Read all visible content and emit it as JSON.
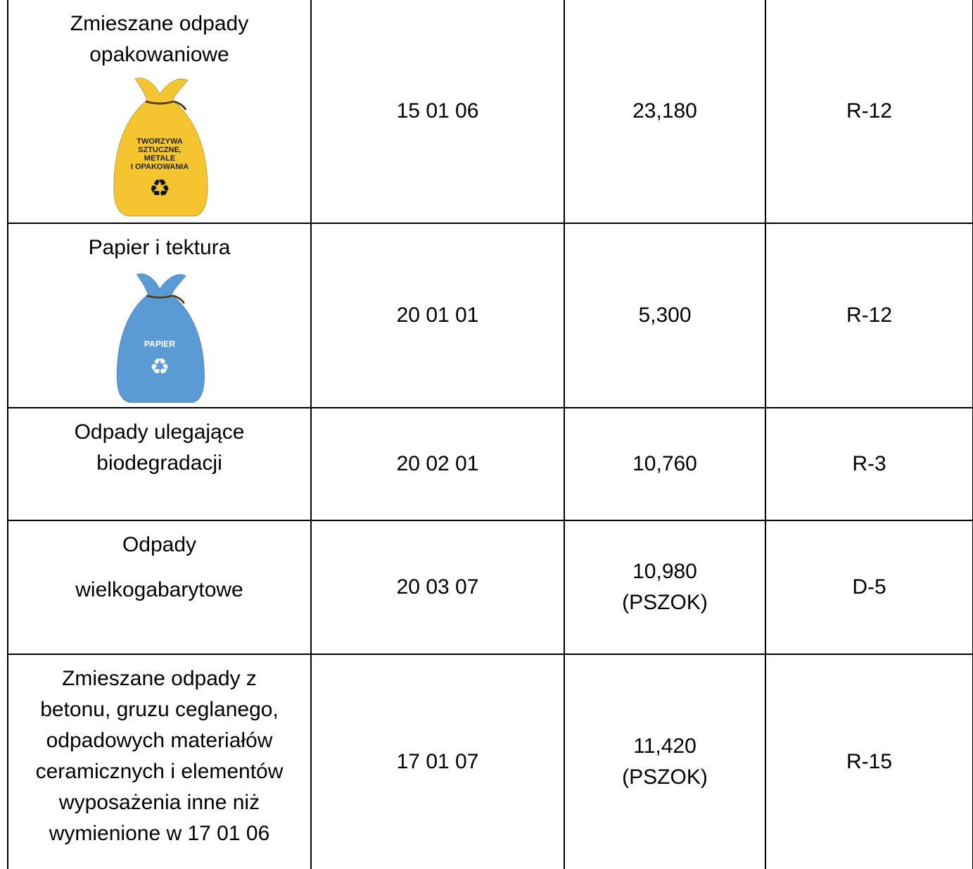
{
  "table": {
    "rows": [
      {
        "name": [
          "Zmieszane odpady",
          "opakowaniowe"
        ],
        "bag": {
          "color": "#f5c530",
          "label": [
            "TWORZYWA",
            "SZTUCZNE,",
            "METALE",
            "I OPAKOWANIA"
          ]
        },
        "code": "15 01 06",
        "mass": [
          "23,180"
        ],
        "method": "R-12"
      },
      {
        "name": [
          "Papier i tektura"
        ],
        "bag": {
          "color": "#5b9bd5",
          "label": [
            "PAPIER"
          ]
        },
        "code": "20 01 01",
        "mass": [
          "5,300"
        ],
        "method": "R-12"
      },
      {
        "name": [
          "Odpady ulegające",
          "biodegradacji"
        ],
        "code": "20 02 01",
        "mass": [
          "10,760"
        ],
        "method": "R-3"
      },
      {
        "name": [
          "Odpady",
          "wielkogabarytowe"
        ],
        "code": "20 03 07",
        "mass": [
          "10,980",
          "(PSZOK)"
        ],
        "method": "D-5"
      },
      {
        "name": [
          "Zmieszane odpady z",
          "betonu, gruzu ceglanego,",
          "odpadowych materiałów",
          "ceramicznych i elementów",
          "wyposażenia inne niż",
          "wymienione w 17 01 06"
        ],
        "code": "17 01 07",
        "mass": [
          "11,420",
          "(PSZOK)"
        ],
        "method": "R-15"
      }
    ]
  }
}
